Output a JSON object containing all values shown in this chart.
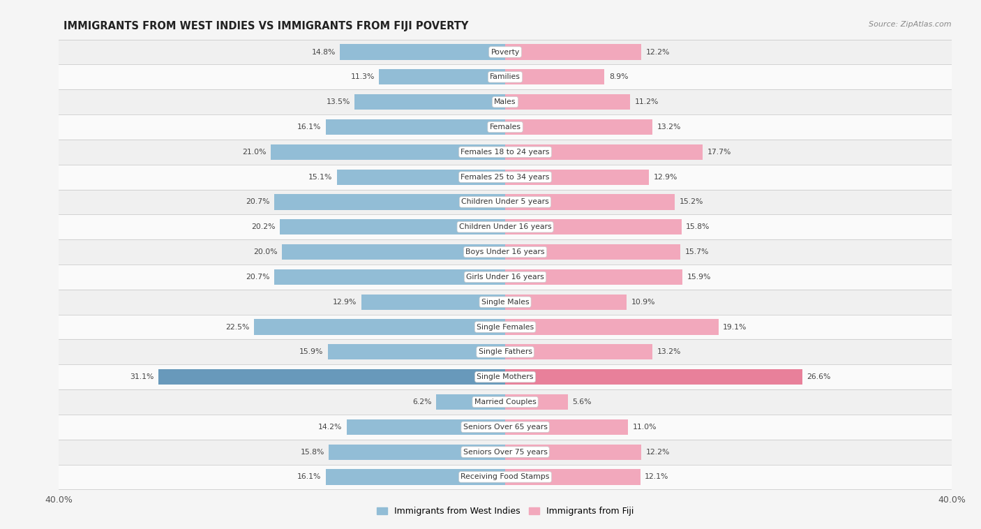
{
  "title": "IMMIGRANTS FROM WEST INDIES VS IMMIGRANTS FROM FIJI POVERTY",
  "source": "Source: ZipAtlas.com",
  "categories": [
    "Poverty",
    "Families",
    "Males",
    "Females",
    "Females 18 to 24 years",
    "Females 25 to 34 years",
    "Children Under 5 years",
    "Children Under 16 years",
    "Boys Under 16 years",
    "Girls Under 16 years",
    "Single Males",
    "Single Females",
    "Single Fathers",
    "Single Mothers",
    "Married Couples",
    "Seniors Over 65 years",
    "Seniors Over 75 years",
    "Receiving Food Stamps"
  ],
  "west_indies": [
    14.8,
    11.3,
    13.5,
    16.1,
    21.0,
    15.1,
    20.7,
    20.2,
    20.0,
    20.7,
    12.9,
    22.5,
    15.9,
    31.1,
    6.2,
    14.2,
    15.8,
    16.1
  ],
  "fiji": [
    12.2,
    8.9,
    11.2,
    13.2,
    17.7,
    12.9,
    15.2,
    15.8,
    15.7,
    15.9,
    10.9,
    19.1,
    13.2,
    26.6,
    5.6,
    11.0,
    12.2,
    12.1
  ],
  "west_indies_color": "#92bdd6",
  "fiji_color": "#f2a8bc",
  "west_indies_highlight": "#6899bb",
  "fiji_highlight": "#e8809a",
  "row_color_even": "#f0f0f0",
  "row_color_odd": "#fafafa",
  "background_color": "#f5f5f5",
  "xlim": 40.0,
  "legend_west_indies": "Immigrants from West Indies",
  "legend_fiji": "Immigrants from Fiji",
  "bar_height": 0.62,
  "label_fontsize": 7.8,
  "value_fontsize": 7.8
}
